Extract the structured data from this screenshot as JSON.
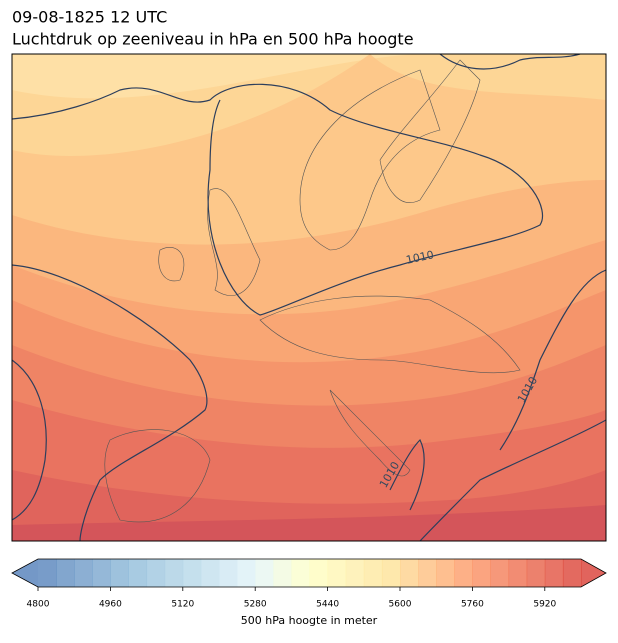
{
  "header": {
    "title_line1": "09-08-1825 12 UTC",
    "title_line2": "Luchtdruk op zeeniveau in hPa en 500 hPa hoogte"
  },
  "map": {
    "contour_labels": [
      "1010",
      "1010",
      "1010"
    ]
  },
  "colorbar": {
    "range": [
      4800,
      6000
    ],
    "ticks": [
      4800,
      4960,
      5120,
      5280,
      5440,
      5600,
      5760,
      5920
    ],
    "label": "500 hPa hoogte in meter"
  }
}
